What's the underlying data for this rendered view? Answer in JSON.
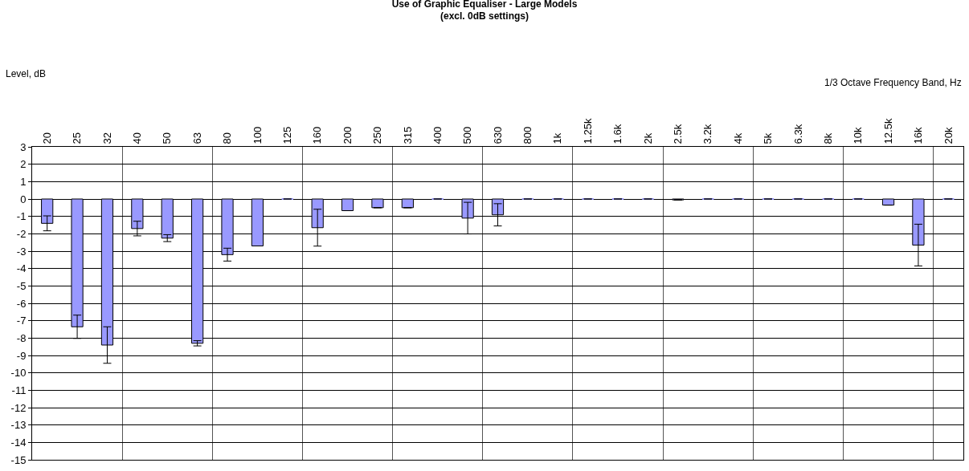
{
  "chart_data": {
    "type": "bar",
    "title": "Use of Graphic Equaliser - Large Models",
    "subtitle": "(excl. 0dB settings)",
    "xlabel": "1/3 Octave Frequency Band, Hz",
    "ylabel": "Level, dB",
    "categories": [
      "20",
      "25",
      "32",
      "40",
      "50",
      "63",
      "80",
      "100",
      "125",
      "160",
      "200",
      "250",
      "315",
      "400",
      "500",
      "630",
      "800",
      "1k",
      "1.25k",
      "1.6k",
      "2k",
      "2.5k",
      "3.2k",
      "4k",
      "5k",
      "6.3k",
      "8k",
      "10k",
      "12.5k",
      "16k",
      "20k"
    ],
    "values": [
      -1.4,
      -7.35,
      -8.4,
      -1.7,
      -2.25,
      -8.3,
      -3.2,
      -2.7,
      0,
      -1.65,
      -0.67,
      -0.5,
      -0.5,
      0,
      -1.1,
      -0.91,
      0,
      0,
      0,
      0,
      0,
      -0.05,
      0,
      0,
      0,
      0,
      0,
      0,
      -0.35,
      -2.65,
      0
    ],
    "errors": [
      0.43,
      0.67,
      1.05,
      0.42,
      0.2,
      0.15,
      0.37,
      null,
      null,
      1.06,
      null,
      null,
      null,
      null,
      0.91,
      0.64,
      null,
      null,
      null,
      null,
      null,
      null,
      null,
      null,
      null,
      null,
      null,
      null,
      null,
      1.2,
      null
    ],
    "color": "#9999ff",
    "ylim": [
      -15,
      3
    ],
    "yticks": [
      -15,
      -14,
      -13,
      -12,
      -11,
      -10,
      -9,
      -8,
      -7,
      -6,
      -5,
      -4,
      -3,
      -2,
      -1,
      0,
      1,
      2,
      3
    ],
    "grid": true,
    "legend": false
  }
}
